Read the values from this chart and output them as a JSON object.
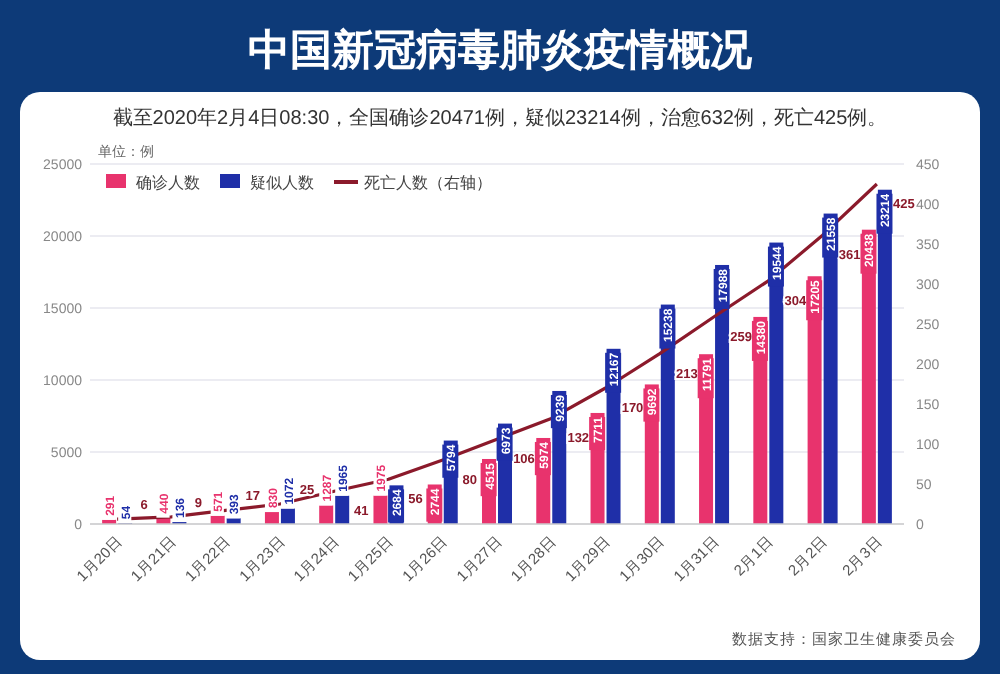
{
  "chart_data": {
    "type": "bar",
    "title": "中国新冠病毒肺炎疫情概况",
    "subtitle": "截至2020年2月4日08:30，全国确诊20471例，疑似23214例，治愈632例，死亡425例。",
    "ylabel": "单位：例",
    "categories": [
      "1月20日",
      "1月21日",
      "1月22日",
      "1月23日",
      "1月24日",
      "1月25日",
      "1月26日",
      "1月27日",
      "1月28日",
      "1月29日",
      "1月30日",
      "1月31日",
      "2月1日",
      "2月2日",
      "2月3日"
    ],
    "series": [
      {
        "name": "确诊人数",
        "color": "#e8336d",
        "values": [
          291,
          440,
          571,
          830,
          1287,
          1975,
          2744,
          4515,
          5974,
          7711,
          9692,
          11791,
          14380,
          17205,
          20438
        ]
      },
      {
        "name": "疑似人数",
        "color": "#1f2fa8",
        "values": [
          54,
          136,
          393,
          1072,
          1965,
          2684,
          5794,
          6973,
          9239,
          12167,
          15238,
          17988,
          19544,
          21558,
          23214
        ]
      },
      {
        "name": "死亡人数（右轴）",
        "type": "line",
        "axis": "y2",
        "color": "#8b1a2b",
        "values": [
          6,
          9,
          17,
          25,
          41,
          56,
          80,
          106,
          132,
          170,
          213,
          259,
          304,
          361,
          425
        ]
      }
    ],
    "ylim": [
      0,
      25000
    ],
    "yticks": [
      0,
      5000,
      10000,
      15000,
      20000,
      25000
    ],
    "y2lim": [
      0,
      450
    ],
    "y2ticks": [
      0,
      50,
      100,
      150,
      200,
      250,
      300,
      350,
      400,
      450
    ],
    "grid": "y",
    "legend": "top left",
    "data_labels": true,
    "annotations": [
      "数据支持：国家卫生健康委员会"
    ]
  }
}
